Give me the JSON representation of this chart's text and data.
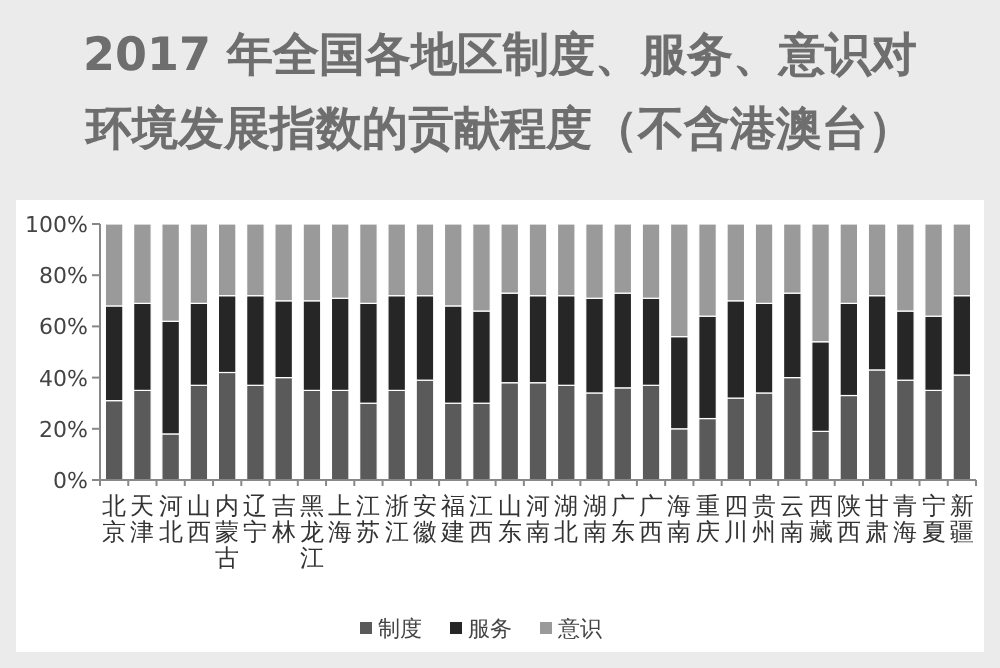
{
  "chart_data": {
    "type": "bar",
    "title": "2017 年全国各地区制度、服务、意识对环境发展指数的贡献程度（不含港澳台）",
    "categories": [
      "北京",
      "天津",
      "河北",
      "山西",
      "内蒙古",
      "辽宁",
      "吉林",
      "黑龙江",
      "上海",
      "江苏",
      "浙江",
      "安徽",
      "福建",
      "江西",
      "山东",
      "河南",
      "湖北",
      "湖南",
      "广东",
      "广西",
      "海南",
      "重庆",
      "四川",
      "贵州",
      "云南",
      "西藏",
      "陕西",
      "甘肃",
      "青海",
      "宁夏",
      "新疆"
    ],
    "stacked": true,
    "series": [
      {
        "name": "制度",
        "color": "#5a5a5a",
        "values": [
          31,
          35,
          18,
          37,
          42,
          37,
          40,
          35,
          35,
          30,
          35,
          39,
          30,
          30,
          38,
          38,
          37,
          34,
          36,
          37,
          20,
          24,
          32,
          34,
          40,
          19,
          33,
          43,
          39,
          35,
          41
        ]
      },
      {
        "name": "服务",
        "color": "#262626",
        "values": [
          37,
          34,
          44,
          32,
          30,
          35,
          30,
          35,
          36,
          39,
          37,
          33,
          38,
          36,
          35,
          34,
          35,
          37,
          37,
          34,
          36,
          40,
          38,
          35,
          33,
          35,
          36,
          29,
          27,
          29,
          31
        ]
      },
      {
        "name": "意识",
        "color": "#9a9a9a",
        "values": [
          32,
          31,
          38,
          31,
          28,
          28,
          30,
          30,
          29,
          31,
          28,
          28,
          32,
          34,
          27,
          28,
          28,
          29,
          27,
          29,
          44,
          36,
          30,
          31,
          27,
          46,
          31,
          28,
          34,
          36,
          28
        ]
      }
    ],
    "ylim": [
      0,
      100
    ],
    "yticks": [
      {
        "value": 0,
        "label": "0%"
      },
      {
        "value": 20,
        "label": "20%"
      },
      {
        "value": 40,
        "label": "40%"
      },
      {
        "value": 60,
        "label": "60%"
      },
      {
        "value": 80,
        "label": "80%"
      },
      {
        "value": 100,
        "label": "100%"
      }
    ],
    "legend": "bottom"
  }
}
